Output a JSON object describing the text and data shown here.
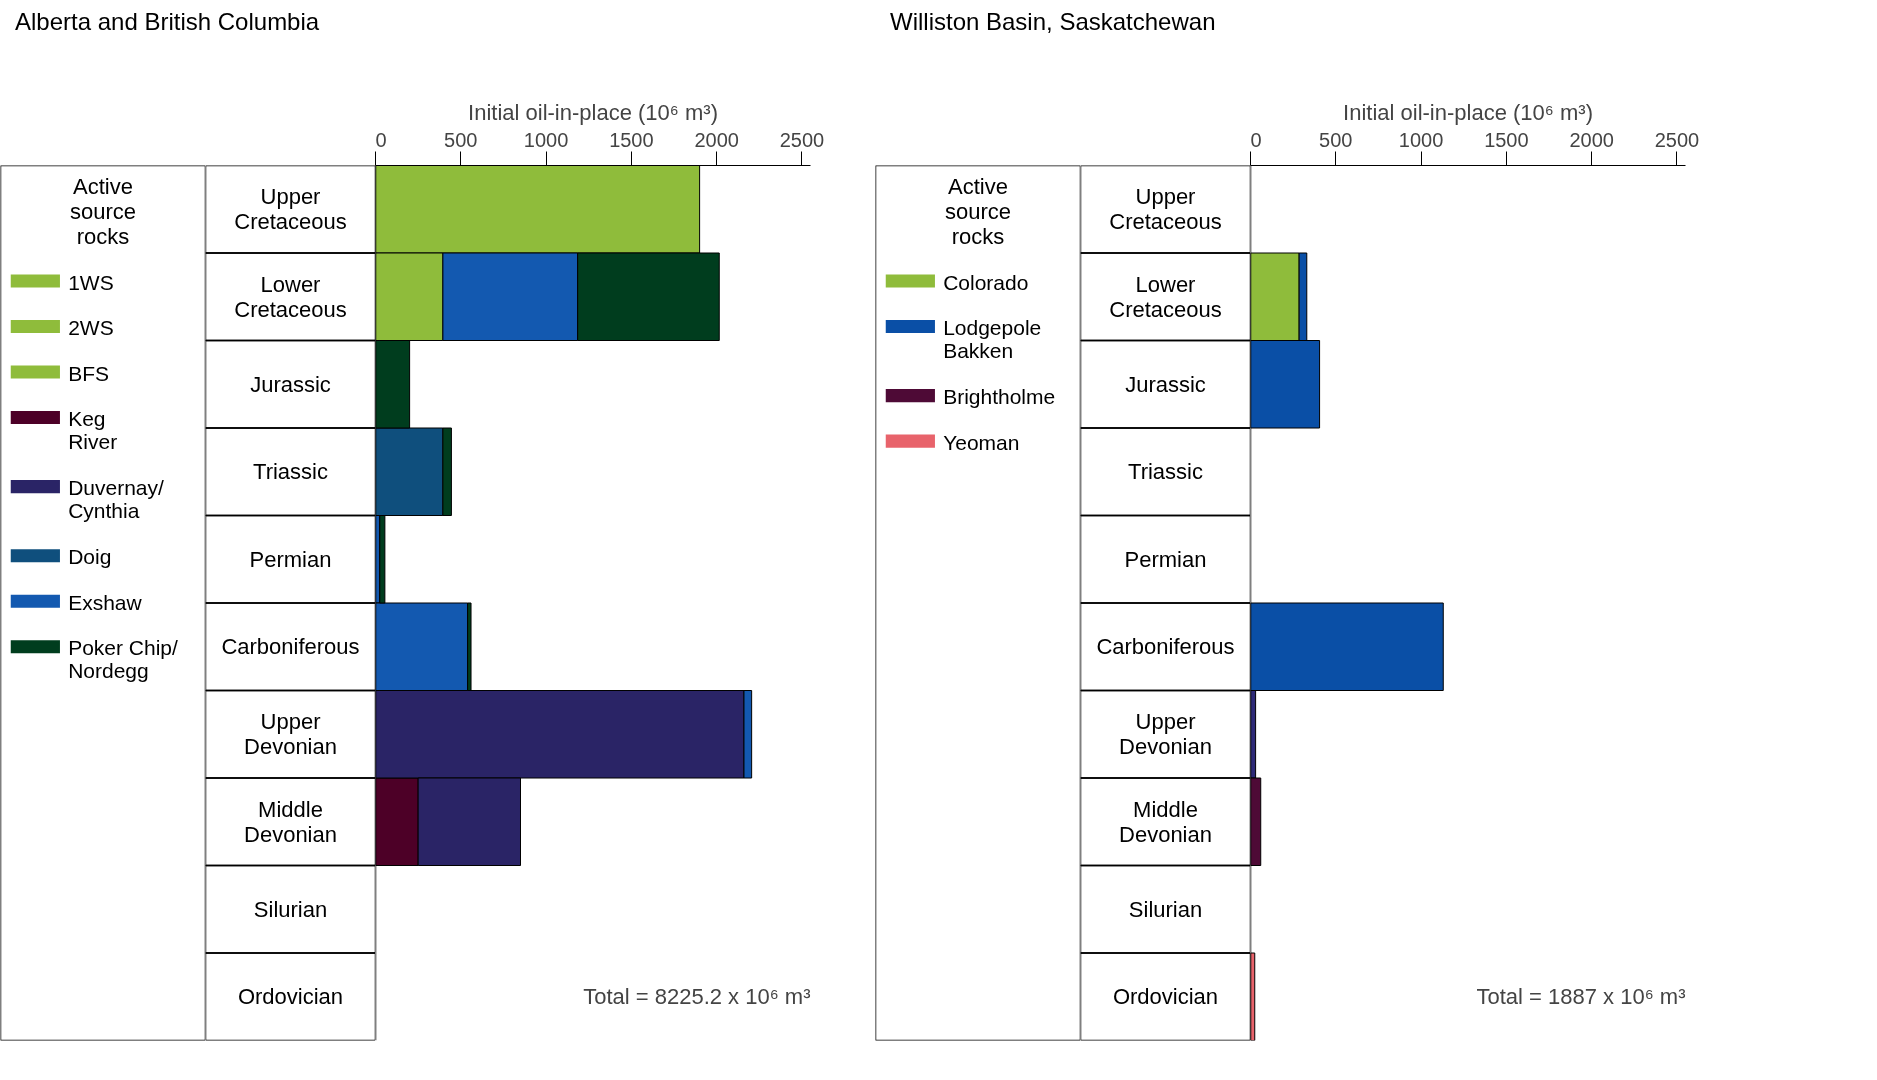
{
  "chart_data": [
    {
      "type": "bar",
      "orientation": "horizontal",
      "stacked": true,
      "title": "Alberta and British Columbia",
      "xlabel": "Initial oil-in-place (10⁶ m³)",
      "legend_title": "Active source rocks",
      "legend": "left",
      "categories": [
        "Upper Cretaceous",
        "Lower Cretaceous",
        "Jurassic",
        "Triassic",
        "Permian",
        "Carboniferous",
        "Upper Devonian",
        "Middle Devonian",
        "Silurian",
        "Ordovician"
      ],
      "xlim": [
        0,
        2550
      ],
      "xticks": [
        0,
        500,
        1000,
        1500,
        2000,
        2500
      ],
      "series": [
        {
          "name": "1WS",
          "color": "#8fbc3b",
          "values": [
            null,
            null,
            null,
            null,
            null,
            null,
            null,
            null,
            null,
            null
          ]
        },
        {
          "name": "2WS",
          "color": "#8fbc3b",
          "values": [
            null,
            null,
            null,
            null,
            null,
            null,
            null,
            null,
            null,
            null
          ]
        },
        {
          "name": "BFS",
          "color": "#8fbc3b",
          "values": [
            null,
            null,
            null,
            null,
            null,
            null,
            null,
            null,
            null,
            null
          ]
        },
        {
          "name": "Keg\nRiver",
          "color": "#4d0027",
          "values": [
            null,
            null,
            null,
            null,
            null,
            null,
            null,
            250,
            null,
            null
          ]
        },
        {
          "name": "Duvernay/\nCynthia",
          "color": "#2a2466",
          "values": [
            null,
            null,
            null,
            null,
            null,
            null,
            2160,
            600,
            null,
            null
          ]
        },
        {
          "color": "#8fbc3b",
          "values": [
            1900,
            395,
            null,
            null,
            null,
            null,
            null,
            null,
            null,
            null
          ]
        },
        {
          "name": "Doig",
          "color": "#0f4f7d",
          "values": [
            null,
            null,
            null,
            395,
            null,
            null,
            null,
            null,
            null,
            null
          ]
        },
        {
          "name": "Exshaw",
          "color": "#1359b0",
          "values": [
            null,
            790,
            null,
            null,
            25,
            540,
            45,
            null,
            null,
            null
          ]
        },
        {
          "name": "Poker Chip/\nNordegg",
          "color": "#003d1e",
          "values": [
            null,
            830,
            200,
            50,
            30,
            20,
            null,
            null,
            null,
            null
          ]
        }
      ],
      "annotations": [
        "Total = 8225.2 x 10⁶ m³"
      ]
    },
    {
      "type": "bar",
      "orientation": "horizontal",
      "stacked": true,
      "title": "Williston Basin, Saskatchewan",
      "xlabel": "Initial oil-in-place (10⁶ m³)",
      "legend_title": "Active source rocks",
      "legend": "left",
      "categories": [
        "Upper Cretaceous",
        "Lower Cretaceous",
        "Jurassic",
        "Triassic",
        "Permian",
        "Carboniferous",
        "Upper Devonian",
        "Middle Devonian",
        "Silurian",
        "Ordovician"
      ],
      "xlim": [
        0,
        2550
      ],
      "xticks": [
        0,
        500,
        1000,
        1500,
        2000,
        2500
      ],
      "series": [
        {
          "name": "Colorado",
          "color": "#8fbc3b",
          "values": [
            null,
            285,
            null,
            null,
            null,
            null,
            null,
            null,
            null,
            null
          ]
        },
        {
          "name": "Lodgepole\nBakken",
          "color": "#0a4fa6",
          "values": [
            null,
            45,
            405,
            null,
            null,
            1130,
            null,
            null,
            null,
            null
          ]
        },
        {
          "color": "#2e2a78",
          "values": [
            null,
            null,
            null,
            null,
            null,
            null,
            30,
            null,
            null,
            null
          ]
        },
        {
          "name": "Brightholme",
          "color": "#4e0a36",
          "values": [
            null,
            null,
            null,
            null,
            null,
            null,
            null,
            60,
            null,
            null
          ]
        },
        {
          "name": "Yeoman",
          "color": "#e8636b",
          "values": [
            null,
            null,
            null,
            null,
            null,
            null,
            null,
            null,
            null,
            25
          ]
        }
      ],
      "annotations": [
        "Total = 1887 x 10⁶ m³"
      ]
    }
  ]
}
